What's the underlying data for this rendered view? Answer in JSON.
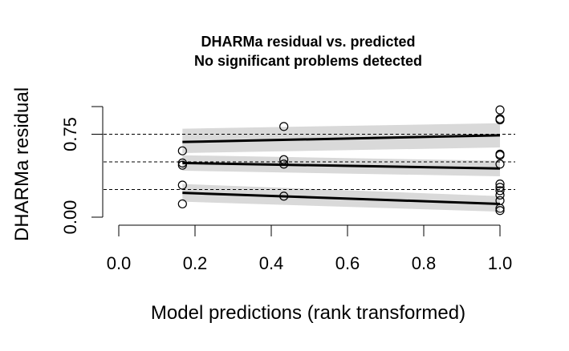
{
  "chart_data": {
    "type": "scatter",
    "title": "DHARMa residual vs. predicted",
    "subtitle": "No significant problems detected",
    "xlabel": "Model predictions (rank transformed)",
    "ylabel": "DHARMa residual",
    "xlim": [
      0.0,
      1.0
    ],
    "ylim": [
      0.0,
      1.0
    ],
    "x_ticks": [
      0.0,
      0.2,
      0.4,
      0.6,
      0.8,
      1.0
    ],
    "x_tick_labels": [
      "0.0",
      "0.2",
      "0.4",
      "0.6",
      "0.8",
      "1.0"
    ],
    "y_ticks": [
      0.0,
      0.75
    ],
    "y_tick_labels": [
      "0.00",
      "0.75"
    ],
    "reference_lines": [
      0.25,
      0.5,
      0.75
    ],
    "points": {
      "x": [
        0.167,
        0.167,
        0.167,
        0.167,
        0.167,
        0.433,
        0.433,
        0.433,
        0.433,
        1.0,
        1.0,
        1.0,
        1.0,
        1.0,
        1.0,
        1.0,
        1.0,
        1.0,
        1.0,
        1.0,
        1.0,
        1.0
      ],
      "y": [
        0.12,
        0.29,
        0.47,
        0.49,
        0.6,
        0.82,
        0.52,
        0.48,
        0.19,
        0.97,
        0.89,
        0.88,
        0.57,
        0.56,
        0.48,
        0.3,
        0.27,
        0.24,
        0.15,
        0.08,
        0.06,
        0.2
      ]
    },
    "quantile_fits": [
      {
        "quantile": 0.25,
        "x": [
          0.167,
          1.0
        ],
        "y": [
          0.22,
          0.12
        ],
        "ci_lower": [
          0.14,
          0.05
        ],
        "ci_upper": [
          0.3,
          0.19
        ]
      },
      {
        "quantile": 0.5,
        "x": [
          0.167,
          1.0
        ],
        "y": [
          0.49,
          0.44
        ],
        "ci_lower": [
          0.42,
          0.37
        ],
        "ci_upper": [
          0.56,
          0.51
        ]
      },
      {
        "quantile": 0.75,
        "x": [
          0.167,
          1.0
        ],
        "y": [
          0.68,
          0.74
        ],
        "ci_lower": [
          0.58,
          0.63
        ],
        "ci_upper": [
          0.8,
          0.85
        ]
      }
    ],
    "colors": {
      "points": "#000000",
      "fit_line": "#000000",
      "ci_band": "#d9d9d9",
      "reference_line": "#000000"
    }
  }
}
